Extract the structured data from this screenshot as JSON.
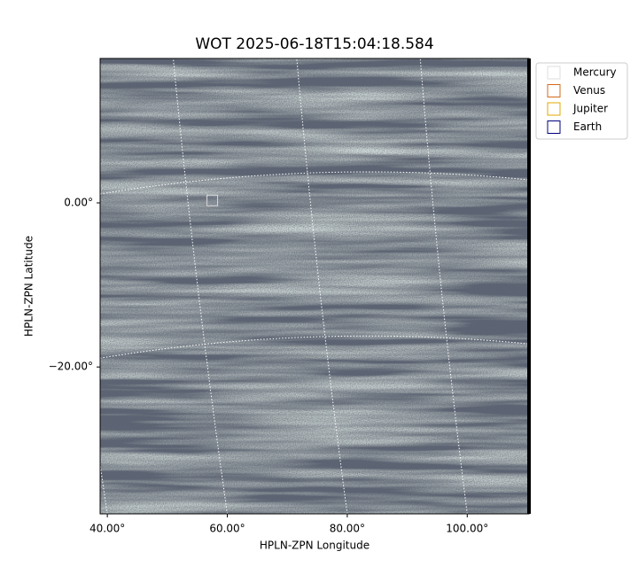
{
  "chart_data": {
    "type": "scatter",
    "title": "WOT 2025-06-18T15:04:18.584",
    "xlabel": "HPLN-ZPN Longitude",
    "ylabel": "HPLN-ZPN Latitude",
    "xlim": [
      38.8,
      110.3
    ],
    "ylim": [
      -37.9,
      17.6
    ],
    "xticks": [
      {
        "value": 40,
        "label": "40.00°"
      },
      {
        "value": 60,
        "label": "60.00°"
      },
      {
        "value": 80,
        "label": "80.00°"
      },
      {
        "value": 100,
        "label": "100.00°"
      }
    ],
    "yticks": [
      {
        "value": 0,
        "label": "0.00°"
      },
      {
        "value": -20,
        "label": "−20.00°"
      }
    ],
    "grid": true,
    "legend": "outside-right",
    "series": [
      {
        "name": "Mercury",
        "color": "#dddddd",
        "x": [
          57.5
        ],
        "y": [
          0.3
        ]
      },
      {
        "name": "Venus",
        "color": "#d2691e",
        "x": [],
        "y": []
      },
      {
        "name": "Jupiter",
        "color": "#e0a800",
        "x": [],
        "y": []
      },
      {
        "name": "Earth",
        "color": "#000080",
        "x": [],
        "y": []
      }
    ]
  }
}
